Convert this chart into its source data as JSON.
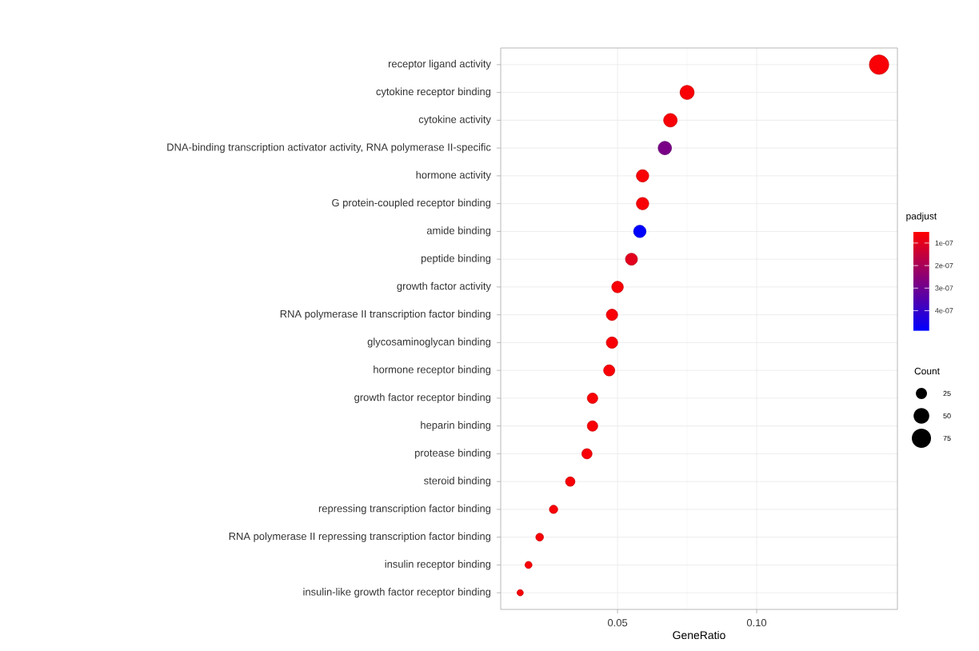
{
  "chart_data": {
    "type": "scatter",
    "orientation": "horizontal",
    "xlabel": "GeneRatio",
    "clabel": "padjust",
    "legend_title": "Count",
    "grid": true,
    "marker": "circle",
    "categories": [
      "receptor ligand activity",
      "cytokine receptor binding",
      "cytokine activity",
      "DNA-binding transcription activator activity, RNA polymerase II-specific",
      "hormone activity",
      "G protein-coupled receptor binding",
      "amide binding",
      "peptide binding",
      "growth factor activity",
      "RNA polymerase II transcription factor binding",
      "glycosaminoglycan binding",
      "hormone receptor binding",
      "growth factor receptor binding",
      "heparin binding",
      "protease binding",
      "steroid binding",
      "repressing transcription factor binding",
      "RNA polymerase II repressing transcription factor binding",
      "insulin receptor binding",
      "insulin-like growth factor receptor binding"
    ],
    "values": [
      0.144,
      0.075,
      0.069,
      0.067,
      0.059,
      0.059,
      0.058,
      0.055,
      0.05,
      0.048,
      0.048,
      0.047,
      0.041,
      0.041,
      0.039,
      0.033,
      0.027,
      0.022,
      0.018,
      0.015
    ],
    "sizes": [
      76,
      40,
      37,
      36,
      31,
      31,
      31,
      29,
      27,
      26,
      26,
      25,
      22,
      22,
      21,
      18,
      14,
      12,
      10,
      8
    ],
    "size_legend": [
      25,
      50,
      75
    ],
    "cvalues": [
      6e-08,
      6e-08,
      6e-08,
      2.8e-07,
      6e-08,
      6e-08,
      4.9e-07,
      1e-07,
      6e-08,
      6e-08,
      6e-08,
      6e-08,
      6e-08,
      6e-08,
      6e-08,
      6e-08,
      6e-08,
      6e-08,
      6e-08,
      6e-08
    ],
    "clim": [
      5e-08,
      4.9e-07
    ],
    "cticks": [
      {
        "value": 1e-07,
        "label": "1e-07"
      },
      {
        "value": 2e-07,
        "label": "2e-07"
      },
      {
        "value": 3e-07,
        "label": "3e-07"
      },
      {
        "value": 4e-07,
        "label": "4e-07"
      }
    ],
    "xlim": [
      0.008,
      0.1506
    ],
    "xticks": [
      {
        "value": 0.05,
        "label": "0.05"
      },
      {
        "value": 0.1,
        "label": "0.10"
      }
    ]
  }
}
